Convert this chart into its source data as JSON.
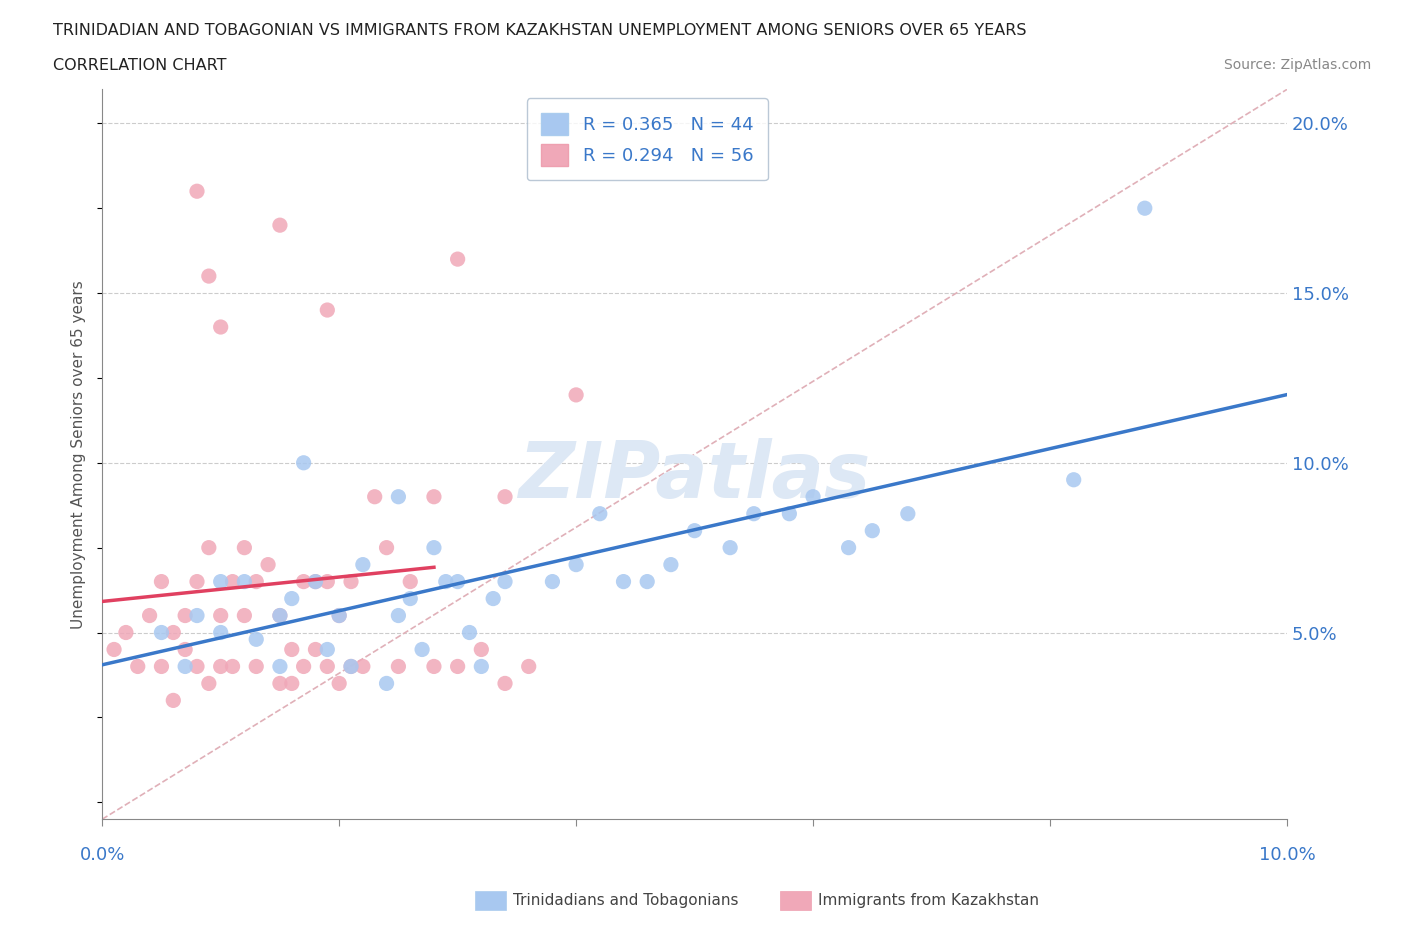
{
  "title_line1": "TRINIDADIAN AND TOBAGONIAN VS IMMIGRANTS FROM KAZAKHSTAN UNEMPLOYMENT AMONG SENIORS OVER 65 YEARS",
  "title_line2": "CORRELATION CHART",
  "source": "Source: ZipAtlas.com",
  "ylabel": "Unemployment Among Seniors over 65 years",
  "legend_blue_r": "R = 0.365",
  "legend_blue_n": "N = 44",
  "legend_pink_r": "R = 0.294",
  "legend_pink_n": "N = 56",
  "blue_color": "#a8c8f0",
  "pink_color": "#f0a8b8",
  "blue_line_color": "#3a78c9",
  "pink_line_color": "#e04060",
  "diag_color": "#e0b0b8",
  "watermark_color": "#dde8f5",
  "blue_scatter_x": [
    0.005,
    0.007,
    0.008,
    0.01,
    0.01,
    0.012,
    0.013,
    0.015,
    0.015,
    0.016,
    0.017,
    0.018,
    0.019,
    0.02,
    0.021,
    0.022,
    0.024,
    0.025,
    0.026,
    0.027,
    0.028,
    0.029,
    0.03,
    0.031,
    0.032,
    0.033,
    0.034,
    0.038,
    0.04,
    0.042,
    0.044,
    0.046,
    0.048,
    0.05,
    0.053,
    0.055,
    0.058,
    0.06,
    0.063,
    0.065,
    0.068,
    0.082,
    0.088,
    0.025
  ],
  "blue_scatter_y": [
    0.05,
    0.04,
    0.055,
    0.05,
    0.065,
    0.065,
    0.048,
    0.04,
    0.055,
    0.06,
    0.1,
    0.065,
    0.045,
    0.055,
    0.04,
    0.07,
    0.035,
    0.055,
    0.06,
    0.045,
    0.075,
    0.065,
    0.065,
    0.05,
    0.04,
    0.06,
    0.065,
    0.065,
    0.07,
    0.085,
    0.065,
    0.065,
    0.07,
    0.08,
    0.075,
    0.085,
    0.085,
    0.09,
    0.075,
    0.08,
    0.085,
    0.095,
    0.175,
    0.09
  ],
  "pink_scatter_x": [
    0.001,
    0.002,
    0.003,
    0.004,
    0.005,
    0.005,
    0.006,
    0.006,
    0.007,
    0.007,
    0.008,
    0.008,
    0.009,
    0.009,
    0.01,
    0.01,
    0.011,
    0.011,
    0.012,
    0.012,
    0.013,
    0.013,
    0.014,
    0.015,
    0.015,
    0.016,
    0.016,
    0.017,
    0.017,
    0.018,
    0.018,
    0.019,
    0.019,
    0.02,
    0.02,
    0.021,
    0.021,
    0.022,
    0.023,
    0.024,
    0.025,
    0.026,
    0.028,
    0.028,
    0.03,
    0.032,
    0.034,
    0.034,
    0.036,
    0.04,
    0.015,
    0.008,
    0.009,
    0.01,
    0.019,
    0.03
  ],
  "pink_scatter_y": [
    0.045,
    0.05,
    0.04,
    0.055,
    0.04,
    0.065,
    0.05,
    0.03,
    0.045,
    0.055,
    0.04,
    0.065,
    0.035,
    0.075,
    0.04,
    0.055,
    0.04,
    0.065,
    0.055,
    0.075,
    0.04,
    0.065,
    0.07,
    0.035,
    0.055,
    0.035,
    0.045,
    0.04,
    0.065,
    0.045,
    0.065,
    0.04,
    0.065,
    0.035,
    0.055,
    0.04,
    0.065,
    0.04,
    0.09,
    0.075,
    0.04,
    0.065,
    0.04,
    0.09,
    0.04,
    0.045,
    0.035,
    0.09,
    0.04,
    0.12,
    0.17,
    0.18,
    0.155,
    0.14,
    0.145,
    0.16
  ],
  "xmin": 0.0,
  "xmax": 0.1,
  "ymin": -0.005,
  "ymax": 0.21,
  "ytick_vals": [
    0.0,
    0.05,
    0.1,
    0.15,
    0.2
  ],
  "ytick_labels": [
    "",
    "5.0%",
    "10.0%",
    "15.0%",
    "20.0%"
  ]
}
